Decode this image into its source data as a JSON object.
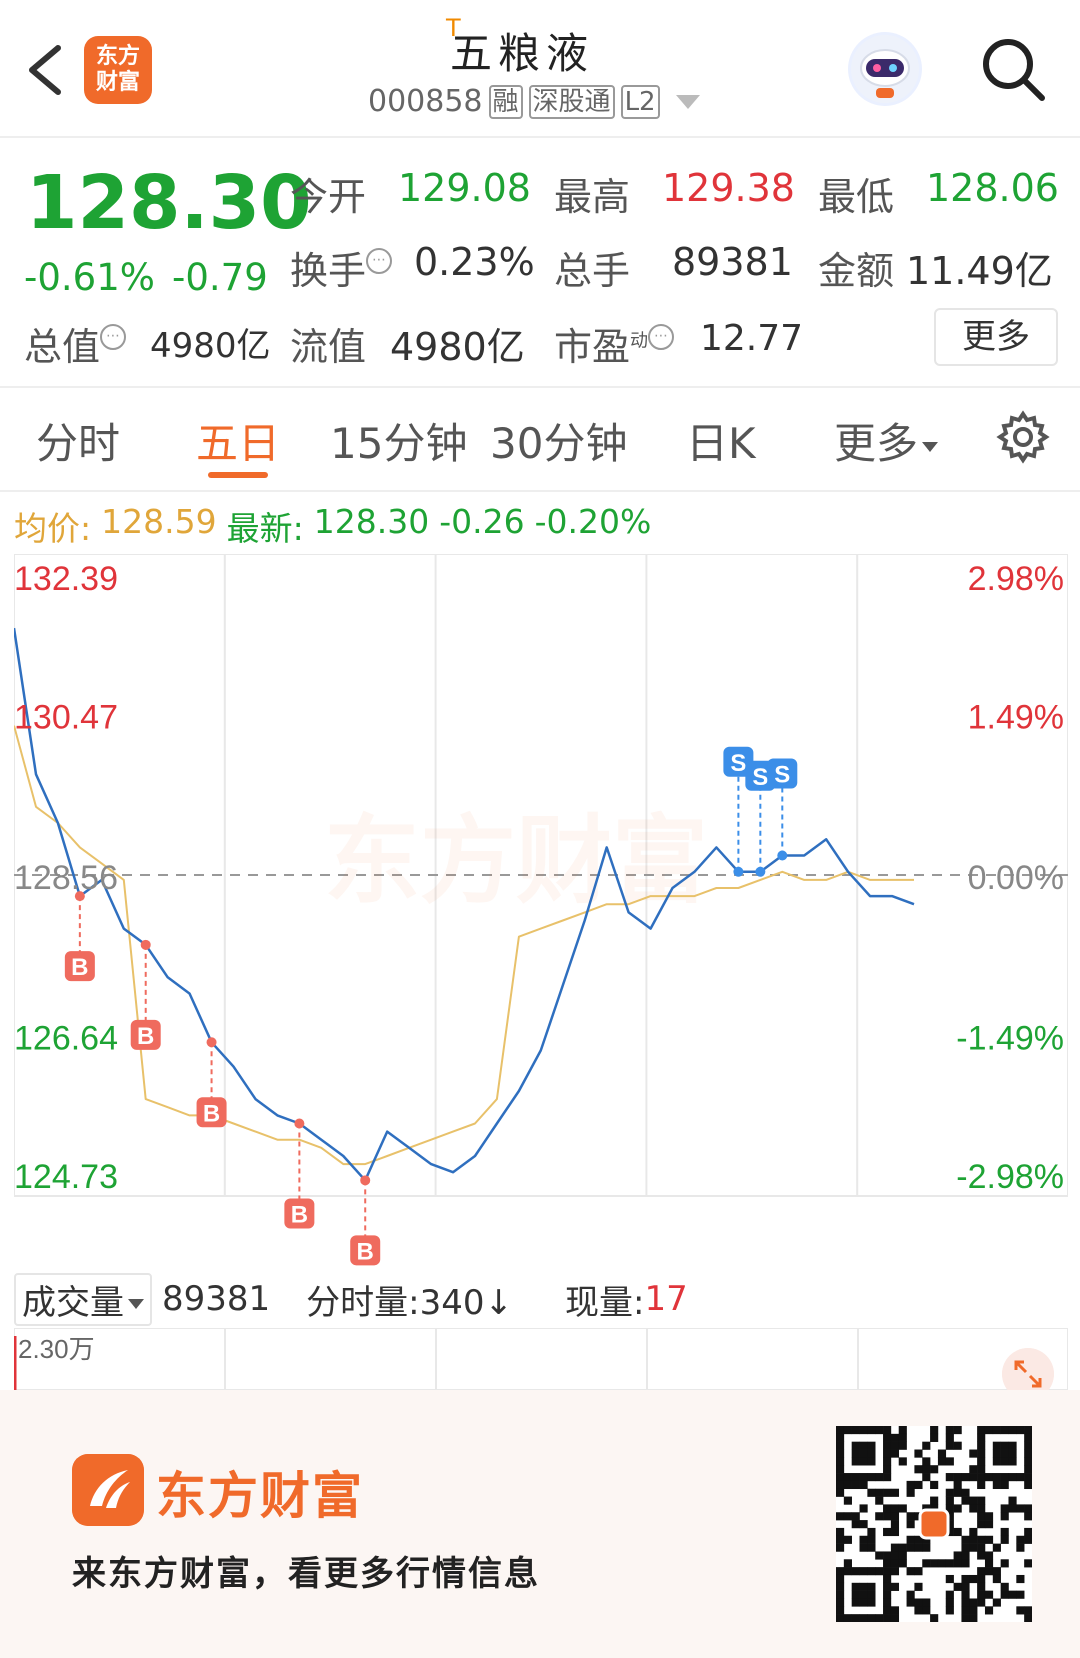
{
  "header": {
    "brand_badge": "东方\n财富",
    "stock_name": "五粮液",
    "stock_name_marker": "T",
    "stock_code": "000858",
    "tags": [
      "融",
      "深股通",
      "L2"
    ]
  },
  "quote": {
    "price": "128.30",
    "change_pct": "-0.61%",
    "change": "-0.79",
    "fields": [
      {
        "label": "今开",
        "value": "129.08",
        "color": "#1ea334"
      },
      {
        "label": "最高",
        "value": "129.38",
        "color": "#e0343a"
      },
      {
        "label": "最低",
        "value": "128.06",
        "color": "#1ea334"
      },
      {
        "label": "换手",
        "value": "0.23%",
        "color": "#333333"
      },
      {
        "label": "总手",
        "value": "89381",
        "color": "#333333"
      },
      {
        "label": "金额",
        "value": "11.49亿",
        "color": "#333333"
      },
      {
        "label": "总值",
        "value": "4980亿",
        "color": "#333333"
      },
      {
        "label": "流值",
        "value": "4980亿",
        "color": "#333333"
      },
      {
        "label": "市盈",
        "label_sup": "动",
        "value": "12.77",
        "color": "#333333"
      }
    ],
    "more_label": "更多"
  },
  "tabs": {
    "items": [
      "分时",
      "五日",
      "15分钟",
      "30分钟",
      "日K",
      "更多"
    ],
    "active": "五日"
  },
  "avg_line": {
    "avg_label": "均价:",
    "avg_value": "128.59",
    "latest_label": "最新:",
    "latest_value": "128.30",
    "latest_change": "-0.26",
    "latest_pct": "-0.20%"
  },
  "chart_data": {
    "type": "line",
    "price_axis": [
      "132.39",
      "130.47",
      "128.56",
      "126.64",
      "124.73"
    ],
    "pct_axis": [
      "2.98%",
      "1.49%",
      "0.00%",
      "-1.49%",
      "-2.98%"
    ],
    "ylim": [
      124.73,
      132.39
    ],
    "base": 128.56,
    "days": 5,
    "grid": true,
    "watermark": "东方财富",
    "series": [
      {
        "values": [
          131.6,
          129.8,
          129.2,
          128.3,
          128.5,
          127.9,
          127.7,
          127.3,
          127.1,
          126.5,
          126.2,
          125.8,
          125.6,
          125.5,
          125.3,
          125.1,
          124.8,
          125.4,
          125.2,
          125.0,
          124.9,
          125.1,
          125.5,
          125.9,
          126.4,
          127.2,
          128.0,
          128.9,
          128.1,
          127.9,
          128.4,
          128.6,
          128.9,
          128.6,
          128.6,
          128.8,
          128.8,
          129.0,
          128.6,
          128.3,
          128.3,
          128.2
        ]
      },
      {
        "values": [
          130.4,
          129.4,
          129.2,
          128.9,
          128.7,
          128.5,
          125.8,
          125.7,
          125.6,
          125.6,
          125.5,
          125.4,
          125.3,
          125.3,
          125.2,
          125.0,
          125.0,
          125.1,
          125.2,
          125.3,
          125.4,
          125.5,
          125.8,
          127.8,
          127.9,
          128.0,
          128.1,
          128.2,
          128.2,
          128.3,
          128.3,
          128.3,
          128.4,
          128.4,
          128.5,
          128.6,
          128.5,
          128.5,
          128.6,
          128.5,
          128.5,
          128.5
        ]
      }
    ],
    "markers": [
      {
        "label": "B",
        "type": "buy",
        "point": 3
      },
      {
        "label": "B",
        "type": "buy",
        "point": 6
      },
      {
        "label": "B",
        "type": "buy",
        "point": 9
      },
      {
        "label": "B",
        "type": "buy",
        "point": 13
      },
      {
        "label": "B",
        "type": "buy",
        "point": 16
      },
      {
        "label": "S",
        "type": "sell",
        "point": 33
      },
      {
        "label": "S",
        "type": "sell",
        "point": 34
      },
      {
        "label": "S",
        "type": "sell",
        "point": 35
      }
    ]
  },
  "volume": {
    "label": "成交量",
    "total": "89381",
    "minute_vol_label": "分时量:340↓",
    "current_label": "现量:",
    "current_value": "17",
    "max_label": "2.30万"
  },
  "footer": {
    "brand": "东方财富",
    "slogan": "来东方财富，看更多行情信息"
  },
  "colors": {
    "up": "#e0343a",
    "down": "#1ea334",
    "accent": "#f06a2a",
    "price_line": "#2f6fbf",
    "avg_line": "#e8c16a"
  }
}
